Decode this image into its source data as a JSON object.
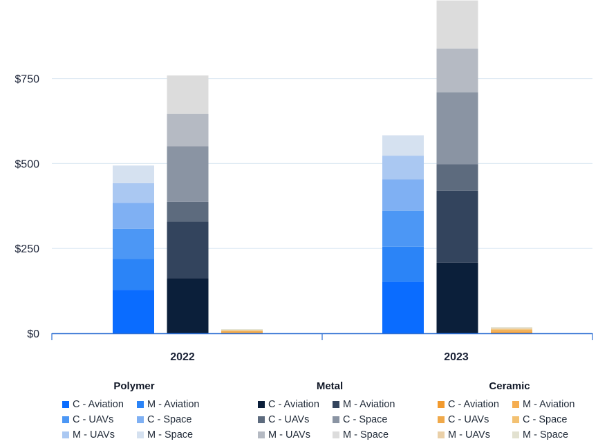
{
  "chart_data": {
    "type": "bar",
    "stacked": true,
    "categories": [
      "2022",
      "2023"
    ],
    "ylim": [
      0,
      980
    ],
    "yticks": [
      {
        "value": 0,
        "label": "$0"
      },
      {
        "value": 250,
        "label": "$250"
      },
      {
        "value": 500,
        "label": "$500"
      },
      {
        "value": 750,
        "label": "$750"
      }
    ],
    "grid": true,
    "legend_position": "bottom",
    "groups": [
      {
        "name": "Polymer",
        "series": [
          {
            "name": "C - Aviation",
            "color": "#0a6cff",
            "values": [
              128,
              152
            ]
          },
          {
            "name": "M - Aviation",
            "color": "#2b84f7",
            "values": [
              91,
              103
            ]
          },
          {
            "name": "C - UAVs",
            "color": "#4c97f5",
            "values": [
              89,
              106
            ]
          },
          {
            "name": "C - Space",
            "color": "#7fb0f3",
            "values": [
              76,
              92
            ]
          },
          {
            "name": "M - UAVs",
            "color": "#aac8f2",
            "values": [
              58,
              70
            ]
          },
          {
            "name": "M - Space",
            "color": "#d5e1f0",
            "values": [
              52,
              60
            ]
          }
        ]
      },
      {
        "name": "Metal",
        "series": [
          {
            "name": "C - Aviation",
            "color": "#0b1f3a",
            "values": [
              162,
              208
            ]
          },
          {
            "name": "M - Aviation",
            "color": "#33445d",
            "values": [
              167,
              212
            ]
          },
          {
            "name": "C - UAVs",
            "color": "#5d6b7e",
            "values": [
              58,
              78
            ]
          },
          {
            "name": "C - Space",
            "color": "#8a94a3",
            "values": [
              164,
              212
            ]
          },
          {
            "name": "M - UAVs",
            "color": "#b5bac3",
            "values": [
              95,
              128
            ]
          },
          {
            "name": "M - Space",
            "color": "#dcdcdc",
            "values": [
              113,
              142
            ]
          }
        ]
      },
      {
        "name": "Ceramic",
        "series": [
          {
            "name": "C - Aviation",
            "color": "#f29a2e",
            "values": [
              2,
              3
            ]
          },
          {
            "name": "M - Aviation",
            "color": "#f5ad50",
            "values": [
              2,
              3
            ]
          },
          {
            "name": "C - UAVs",
            "color": "#f0a94a",
            "values": [
              2,
              3
            ]
          },
          {
            "name": "C - Space",
            "color": "#f3c172",
            "values": [
              2,
              3
            ]
          },
          {
            "name": "M - UAVs",
            "color": "#ead0a8",
            "values": [
              2,
              3
            ]
          },
          {
            "name": "M - Space",
            "color": "#e2e1d0",
            "values": [
              2,
              3
            ]
          }
        ]
      }
    ]
  }
}
